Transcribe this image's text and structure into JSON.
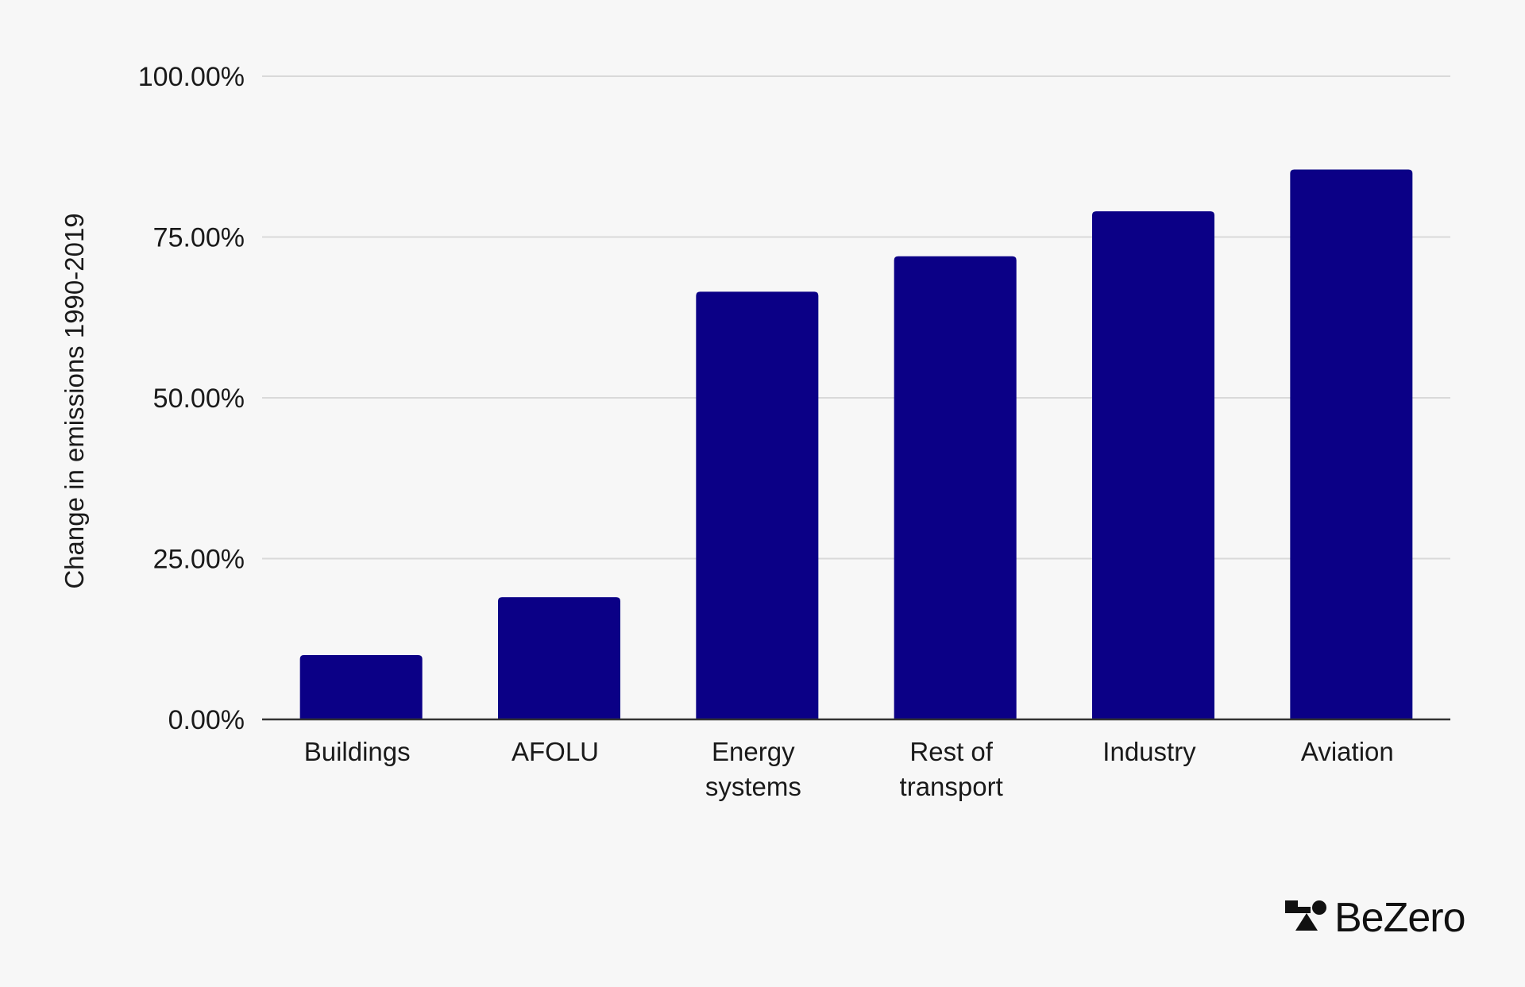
{
  "chart_data": {
    "type": "bar",
    "categories": [
      [
        "Buildings"
      ],
      [
        "AFOLU"
      ],
      [
        "Energy",
        "systems"
      ],
      [
        "Rest of",
        "transport"
      ],
      [
        "Industry"
      ],
      [
        "Aviation"
      ]
    ],
    "values": [
      10,
      19,
      66.5,
      72,
      79,
      85.5
    ],
    "title": "",
    "xlabel": "",
    "ylabel": "Change in emissions 1990-2019",
    "ylim": [
      0,
      100
    ],
    "yticks": [
      0,
      25,
      50,
      75,
      100
    ],
    "ytick_labels": [
      "0.00%",
      "25.00%",
      "50.00%",
      "75.00%",
      "100.00%"
    ],
    "grid": true,
    "legend": "none",
    "colors": {
      "bar": "#0b0086",
      "grid": "#d9d9d9",
      "axis": "#333333",
      "background": "#f7f7f7"
    }
  },
  "brand": {
    "logo_text": "BeZero",
    "logo_icon": "bezero-shapes-icon"
  }
}
